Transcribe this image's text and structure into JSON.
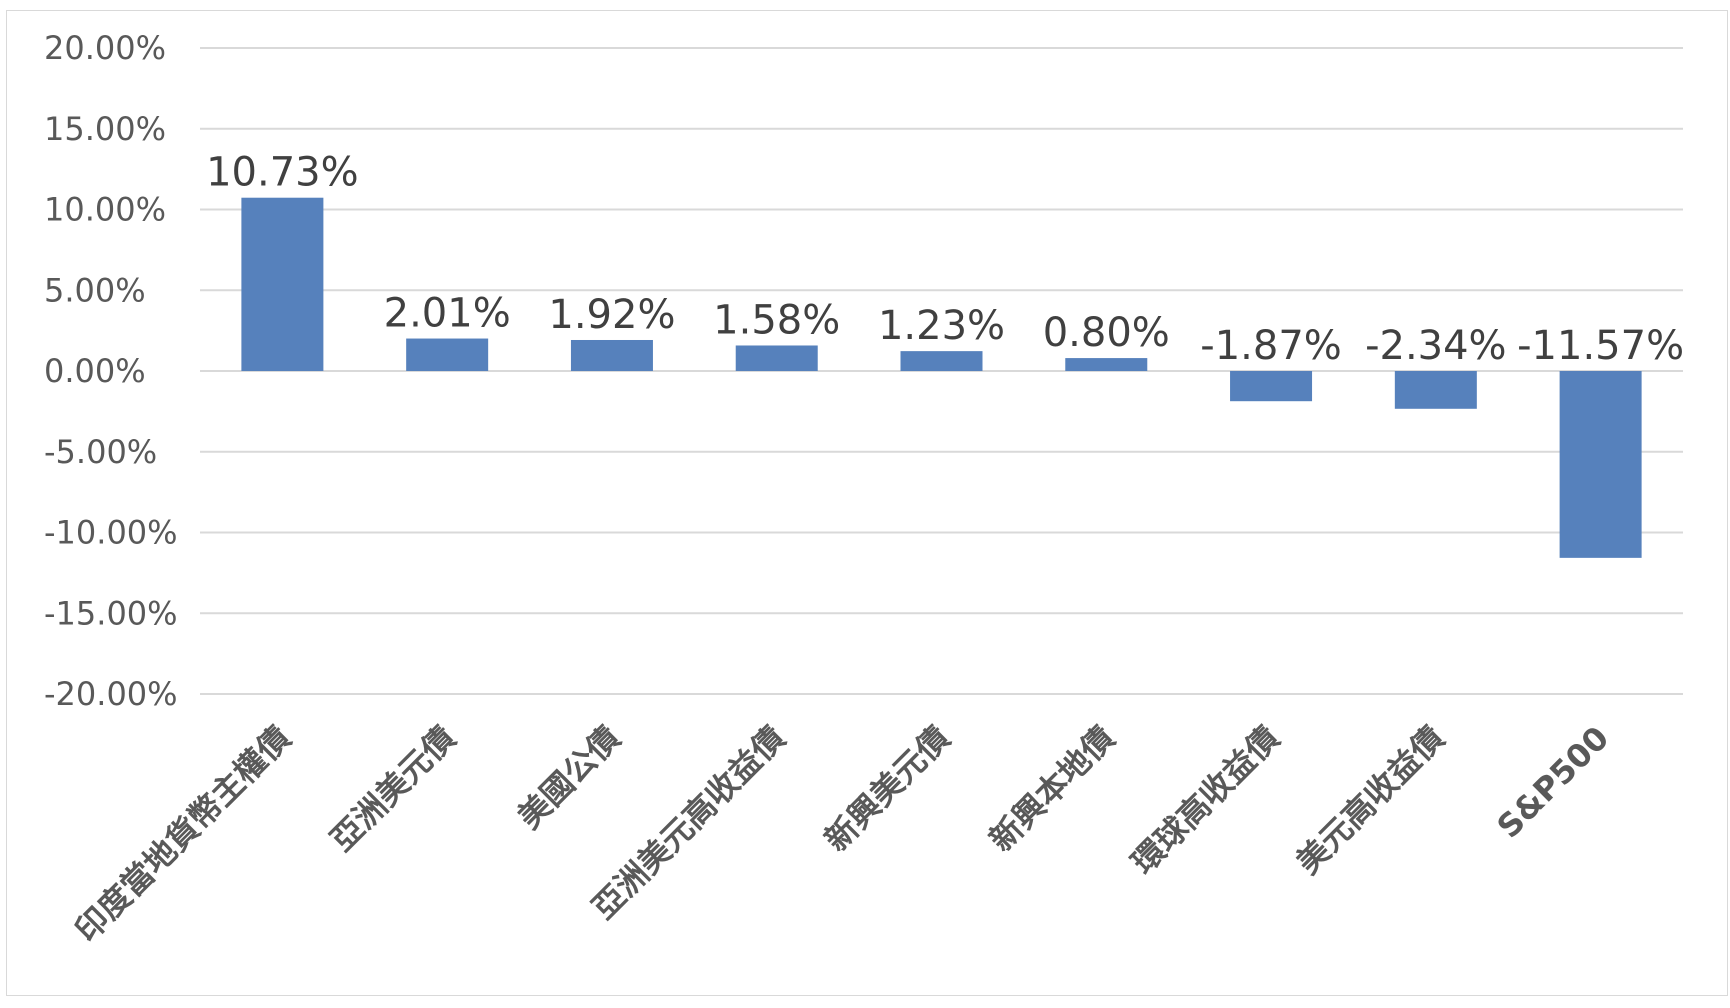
{
  "chart_data": {
    "type": "bar",
    "title": "",
    "xlabel": "",
    "ylabel": "",
    "ylim": [
      -0.2,
      0.2
    ],
    "ytick_step": 0.05,
    "grid": true,
    "legend": "none",
    "bar_color": "#5681BC",
    "categories": [
      "印度當地貨幣主權債",
      "亞洲美元債",
      "美國公債",
      "亞洲美元高收益債",
      "新興美元債",
      "新興本地債",
      "環球高收益債",
      "美元高收益債",
      "S&P500"
    ],
    "values": [
      0.1073,
      0.0201,
      0.0192,
      0.0158,
      0.0123,
      0.008,
      -0.0187,
      -0.0234,
      -0.1157
    ],
    "data_labels": [
      "10.73%",
      "2.01%",
      "1.92%",
      "1.58%",
      "1.23%",
      "0.80%",
      "-1.87%",
      "-2.34%",
      "-11.57%"
    ],
    "y_tick_labels": [
      "20.00%",
      "15.00%",
      "10.00%",
      "5.00%",
      "0.00%",
      "-5.00%",
      "-10.00%",
      "-15.00%",
      "-20.00%"
    ]
  }
}
